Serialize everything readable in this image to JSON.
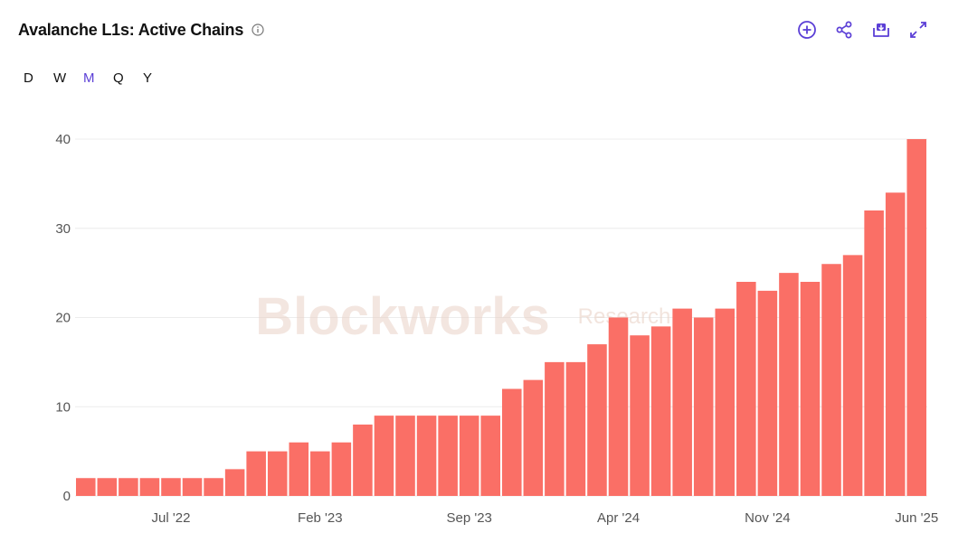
{
  "header": {
    "title": "Avalanche L1s: Active Chains",
    "info_icon": "info-circle-icon",
    "actions": [
      {
        "name": "add-button",
        "icon": "plus-circle-icon"
      },
      {
        "name": "share-button",
        "icon": "share-icon"
      },
      {
        "name": "download-button",
        "icon": "download-icon"
      },
      {
        "name": "expand-button",
        "icon": "expand-icon"
      }
    ]
  },
  "periods": {
    "items": [
      "D",
      "W",
      "M",
      "Q",
      "Y"
    ],
    "selected": "M"
  },
  "watermark": {
    "brand": "Blockworks",
    "sub": "Research"
  },
  "colors": {
    "bar": "#fa6f66",
    "accent": "#5b3fd6",
    "grid": "#ececec",
    "axis_text": "#555555"
  },
  "chart_data": {
    "type": "bar",
    "ylim": [
      0,
      40
    ],
    "yticks": [
      0,
      10,
      20,
      30,
      40
    ],
    "xtick_labels": [
      {
        "label": "Jul '22",
        "index": 4
      },
      {
        "label": "Feb '23",
        "index": 11
      },
      {
        "label": "Sep '23",
        "index": 18
      },
      {
        "label": "Apr '24",
        "index": 25
      },
      {
        "label": "Nov '24",
        "index": 32
      },
      {
        "label": "Jun '25",
        "index": 39
      }
    ],
    "categories": [
      "Mar '22",
      "Apr '22",
      "May '22",
      "Jun '22",
      "Jul '22",
      "Aug '22",
      "Sep '22",
      "Oct '22",
      "Nov '22",
      "Dec '22",
      "Jan '23",
      "Feb '23",
      "Mar '23",
      "Apr '23",
      "May '23",
      "Jun '23",
      "Jul '23",
      "Aug '23",
      "Sep '23",
      "Oct '23",
      "Nov '23",
      "Dec '23",
      "Jan '24",
      "Feb '24",
      "Mar '24",
      "Apr '24",
      "May '24",
      "Jun '24",
      "Jul '24",
      "Aug '24",
      "Sep '24",
      "Oct '24",
      "Nov '24",
      "Dec '24",
      "Jan '25",
      "Feb '25",
      "Mar '25",
      "Apr '25",
      "May '25",
      "Jun '25"
    ],
    "values": [
      2,
      2,
      2,
      2,
      2,
      2,
      2,
      3,
      5,
      5,
      6,
      5,
      6,
      8,
      9,
      9,
      9,
      9,
      9,
      9,
      12,
      13,
      15,
      15,
      17,
      20,
      18,
      19,
      21,
      20,
      21,
      24,
      23,
      25,
      24,
      26,
      27,
      32,
      34,
      40
    ],
    "grid": true,
    "legend": "none"
  }
}
